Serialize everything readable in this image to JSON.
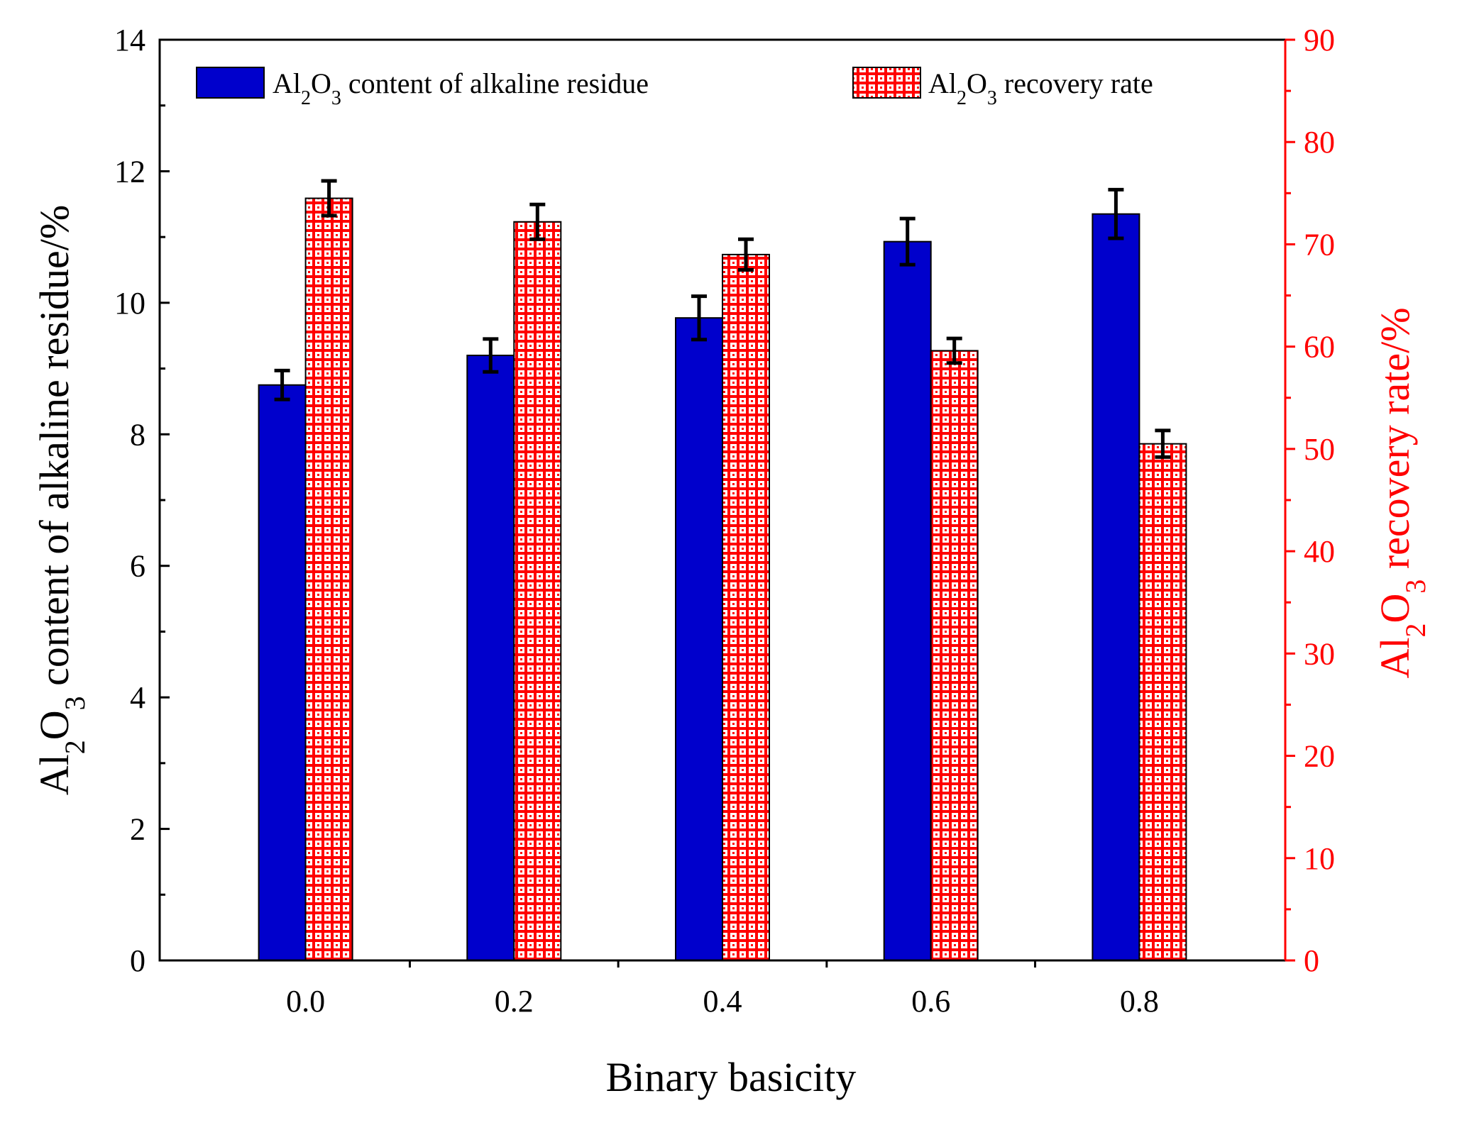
{
  "chart_data": {
    "type": "bar",
    "x": {
      "label": "Binary basicity",
      "categories": [
        "0.0",
        "0.2",
        "0.4",
        "0.6",
        "0.8"
      ]
    },
    "y_left": {
      "label_parts": [
        "Al",
        "2",
        "O",
        "3",
        " content of alkaline residue/%"
      ],
      "lim": [
        0,
        14
      ],
      "ticks": [
        "0",
        "2",
        "4",
        "6",
        "8",
        "10",
        "12",
        "14"
      ],
      "tick_values": [
        0,
        2,
        4,
        6,
        8,
        10,
        12,
        14
      ]
    },
    "y_right": {
      "label_parts": [
        "Al",
        "2",
        "O",
        "3",
        " recovery rate/%"
      ],
      "lim": [
        0,
        90
      ],
      "ticks": [
        "0",
        "10",
        "20",
        "30",
        "40",
        "50",
        "60",
        "70",
        "80",
        "90"
      ],
      "tick_values": [
        0,
        10,
        20,
        30,
        40,
        50,
        60,
        70,
        80,
        90
      ],
      "color": "#ff0000"
    },
    "series": [
      {
        "name_parts": [
          "Al",
          "2",
          "O",
          "3",
          " content of alkaline residue"
        ],
        "axis": "left",
        "style": "solid",
        "color": "#0000cc",
        "values": [
          8.75,
          9.2,
          9.77,
          10.93,
          11.35
        ],
        "errors": [
          0.22,
          0.25,
          0.33,
          0.35,
          0.37
        ]
      },
      {
        "name_parts": [
          "Al",
          "2",
          "O",
          "3",
          " recovery rate"
        ],
        "axis": "right",
        "style": "red-square-pattern",
        "color": "#ff0000",
        "values": [
          74.5,
          72.2,
          69.0,
          59.6,
          50.5
        ],
        "errors": [
          1.7,
          1.7,
          1.5,
          1.2,
          1.3
        ]
      }
    ],
    "legend_position": "top"
  }
}
